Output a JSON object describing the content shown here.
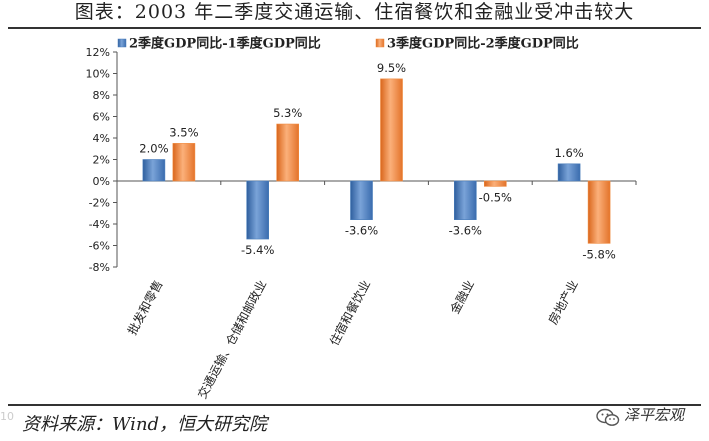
{
  "title": "图表：2003 年二季度交通运输、住宿餐饮和金融业受冲击较大",
  "source": "资料来源：Wind，恒大研究院",
  "watermark": "泽平宏观",
  "side_mark": "10",
  "chart_data": {
    "type": "bar",
    "categories": [
      "批发和零售",
      "交通运输、仓储和邮政业",
      "住宿和餐饮业",
      "金融业",
      "房地产业"
    ],
    "series": [
      {
        "name": "2季度GDP同比-1季度GDP同比",
        "values": [
          2.0,
          -5.4,
          -3.6,
          -3.6,
          1.6
        ],
        "labels": [
          "2.0%",
          "-5.4%",
          "-3.6%",
          "-3.6%",
          "1.6%"
        ],
        "color": "#4a7ebb"
      },
      {
        "name": "3季度GDP同比-2季度GDP同比",
        "values": [
          3.5,
          5.3,
          9.5,
          -0.5,
          -5.8
        ],
        "labels": [
          "3.5%",
          "5.3%",
          "9.5%",
          "-0.5%",
          "-5.8%"
        ],
        "color": "#f08a3e"
      }
    ],
    "yticks": [
      "12%",
      "10%",
      "8%",
      "6%",
      "4%",
      "2%",
      "0%",
      "-2%",
      "-4%",
      "-6%",
      "-8%"
    ],
    "ylim": [
      -8,
      12
    ],
    "legend": "top-left"
  }
}
